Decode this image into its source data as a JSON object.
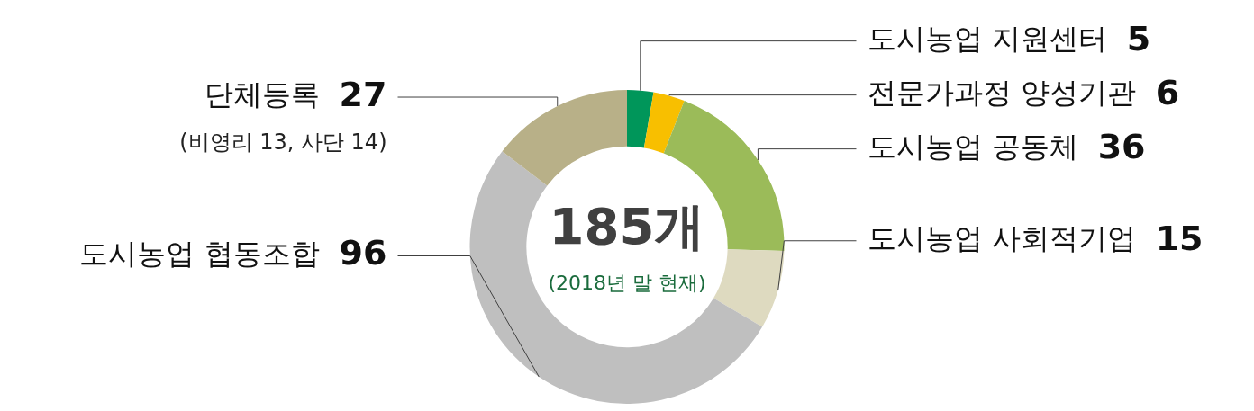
{
  "chart_data": {
    "type": "donut",
    "title": "185개",
    "subtitle": "(2018년 말 현재)",
    "categories": [
      "도시농업 지원센터",
      "전문가과정 양성기관",
      "도시농업 공동체",
      "도시농업 사회적기업",
      "도시농업 협동조합",
      "단체등록"
    ],
    "values": [
      5,
      6,
      36,
      15,
      96,
      27
    ],
    "colors": [
      "#00965a",
      "#f8bf00",
      "#9bbb59",
      "#dedac0",
      "#bfbfbf",
      "#b8b088"
    ],
    "data_labels": true,
    "legend": false,
    "annotations": [
      "(비영리 13, 사단 14)"
    ]
  }
}
